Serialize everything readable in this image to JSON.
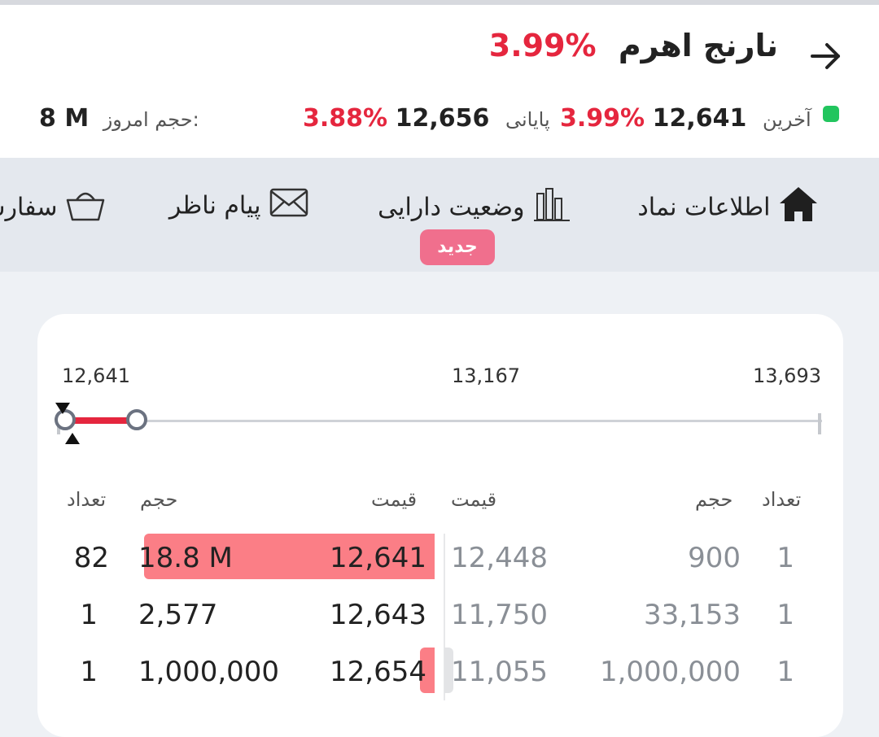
{
  "header": {
    "title": "نارنج اهرم",
    "title_change": "3.99%",
    "colors": {
      "negative": "#e5263e",
      "live": "#22c55e"
    }
  },
  "summary": {
    "last_label": "آخرین",
    "last_value": "12,641",
    "last_change": "3.99%",
    "close_label": "پایانی",
    "close_value": "12,656",
    "close_change": "3.88%",
    "volume_label": "حجم امروز:",
    "volume_value": "8 M"
  },
  "tabs": [
    {
      "label": "اطلاعات نماد",
      "icon": "home-icon"
    },
    {
      "label": "وضعیت دارایی",
      "icon": "bar-chart-icon",
      "badge": "جدید"
    },
    {
      "label": "پیام ناظر",
      "icon": "envelope-icon"
    },
    {
      "label": "سفارش",
      "icon": "basket-icon"
    }
  ],
  "price_range": {
    "min": "12,641",
    "mid": "13,167",
    "max": "13,693",
    "low_marker": 12641,
    "range_low": 12641,
    "range_high": 12741
  },
  "order_book": {
    "headers": {
      "buy_count": "تعداد",
      "buy_volume": "حجم",
      "buy_price": "قیمت",
      "sell_price": "قیمت",
      "sell_volume": "حجم",
      "sell_count": "تعداد"
    },
    "buy": [
      {
        "count": "82",
        "volume": "18.8 M",
        "price": "12,641",
        "depth": 1.0
      },
      {
        "count": "1",
        "volume": "2,577",
        "price": "12,643",
        "depth": 0.0
      },
      {
        "count": "1",
        "volume": "1,000,000",
        "price": "12,654",
        "depth": 0.05
      }
    ],
    "sell": [
      {
        "price": "12,448",
        "volume": "900",
        "count": "1",
        "depth": 0.0
      },
      {
        "price": "11,750",
        "volume": "33,153",
        "count": "1",
        "depth": 0.0
      },
      {
        "price": "11,055",
        "volume": "1,000,000",
        "count": "1",
        "depth": 0.05
      }
    ]
  }
}
